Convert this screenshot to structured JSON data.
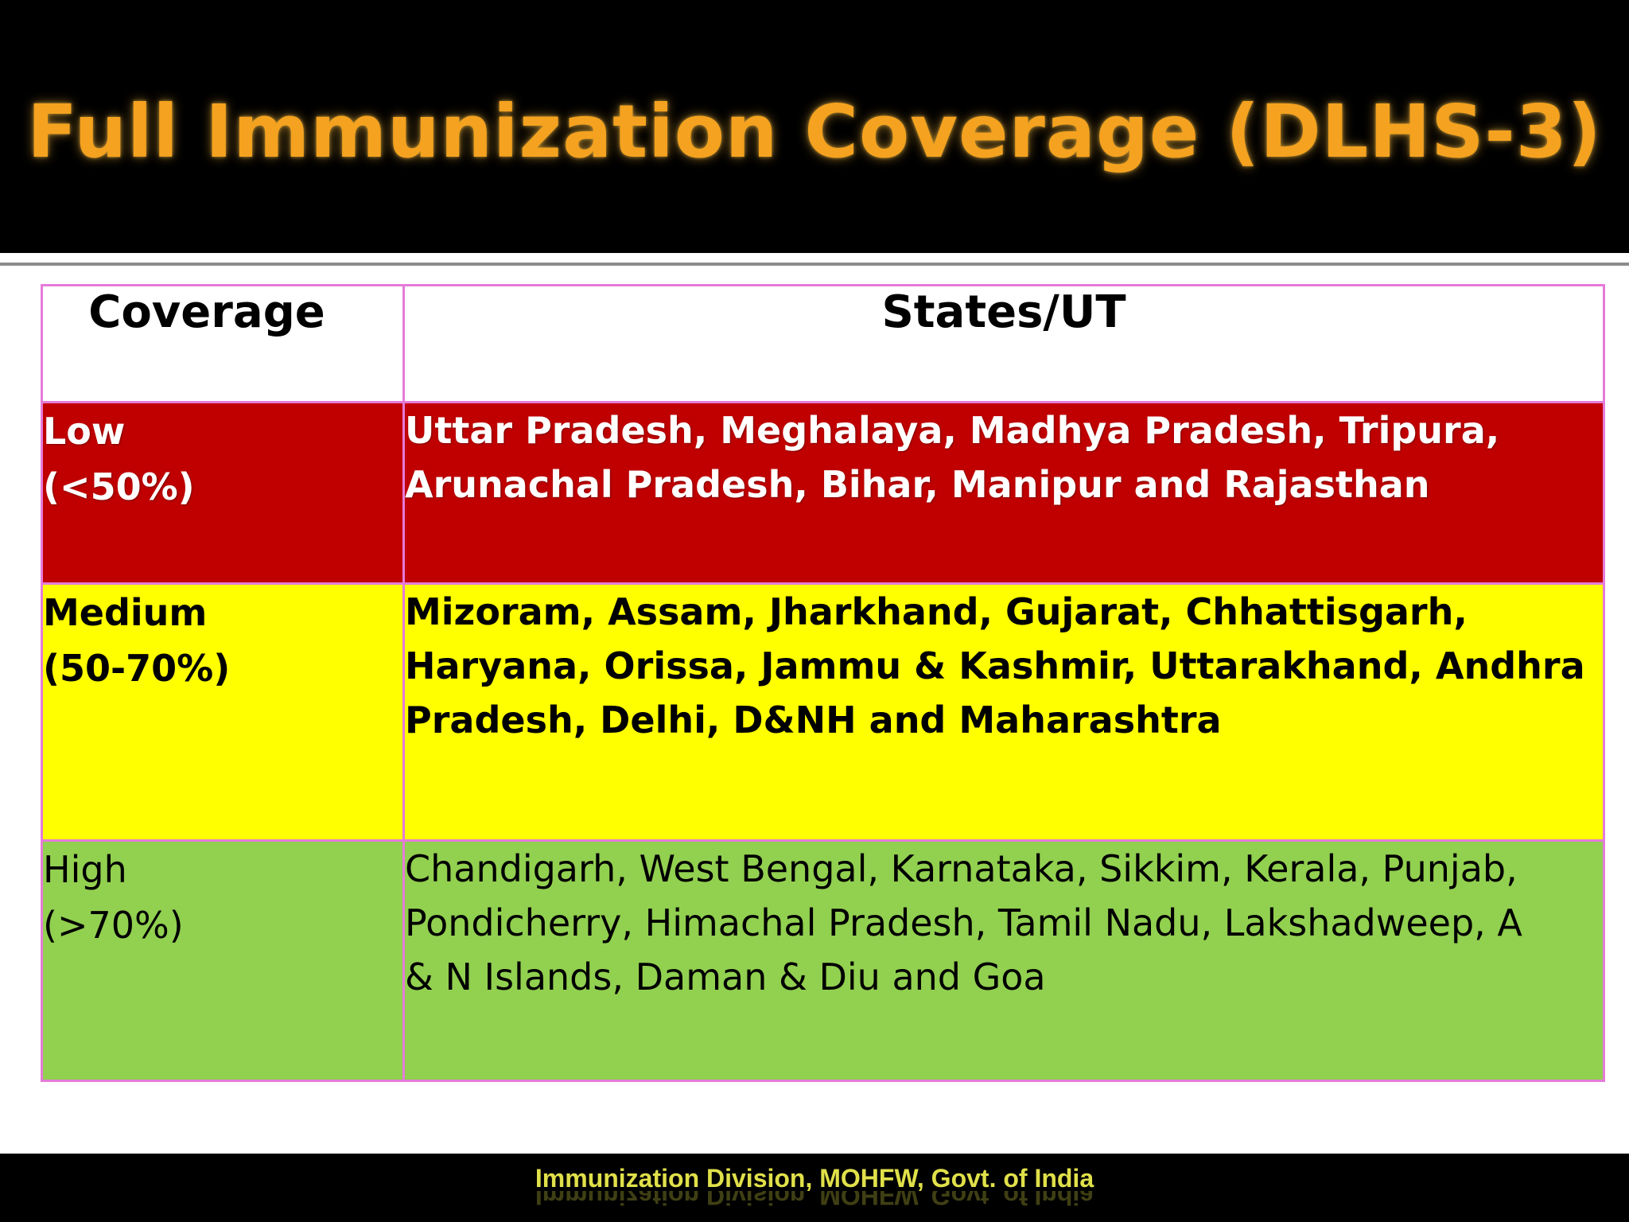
{
  "title": "Full Immunization Coverage (DLHS-3)",
  "table": {
    "headers": {
      "coverage": "Coverage",
      "states": "States/UT"
    },
    "rows": [
      {
        "level": "Low",
        "range": "(<50%)",
        "states_line1": "Uttar Pradesh, Meghalaya, Madhya Pradesh, Tripura,",
        "states_line2": "Arunachal Pradesh, Bihar, Manipur and Rajasthan",
        "states_line3": "",
        "color": "#C00000"
      },
      {
        "level": "Medium",
        "range": "(50-70%)",
        "states_line1": "Mizoram, Assam, Jharkhand, Gujarat, Chhattisgarh,",
        "states_line2": "Haryana, Orissa, Jammu & Kashmir, Uttarakhand, Andhra",
        "states_line3": "Pradesh, Delhi, D&NH and Maharashtra",
        "color": "#FFFF00"
      },
      {
        "level": "High",
        "range": "(>70%)",
        "states_line1": "Chandigarh, West Bengal, Karnataka, Sikkim, Kerala, Punjab,",
        "states_line2": "Pondicherry, Himachal Pradesh, Tamil Nadu, Lakshadweep, A",
        "states_line3": "& N Islands, Daman & Diu and Goa",
        "color": "#92D050"
      }
    ]
  },
  "footer": "Immunization Division, MOHFW, Govt. of India",
  "colors": {
    "title": "#F4A21F",
    "table_border": "#E57BD9",
    "footer_text": "#E0E04A",
    "background_bars": "#000000"
  }
}
